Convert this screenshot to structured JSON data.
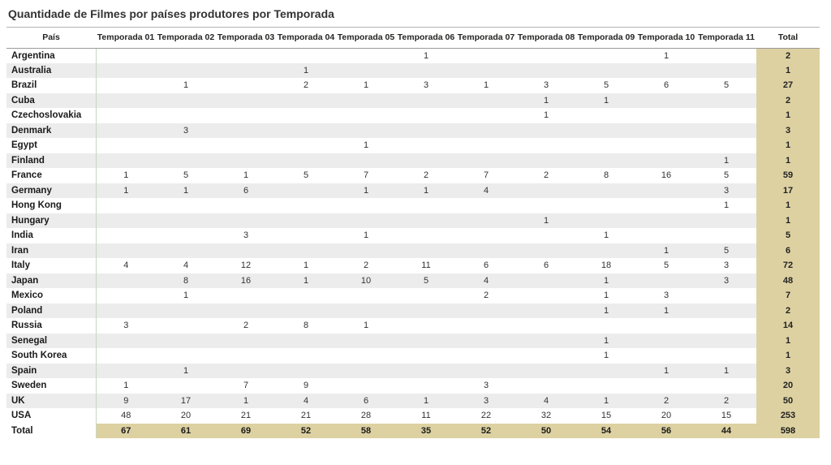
{
  "chart_data": {
    "type": "table",
    "title": "Quantidade de Filmes por países produtores por Temporada",
    "row_header_label": "País",
    "season_columns": [
      "Temporada 01",
      "Temporada 02",
      "Temporada 03",
      "Temporada 04",
      "Temporada 05",
      "Temporada 06",
      "Temporada 07",
      "Temporada 08",
      "Temporada 09",
      "Temporada 10",
      "Temporada 11"
    ],
    "total_column_label": "Total",
    "rows": [
      {
        "country": "Argentina",
        "values": [
          "",
          "",
          "",
          "",
          "",
          "1",
          "",
          "",
          "",
          "1",
          ""
        ],
        "total": "2"
      },
      {
        "country": "Australia",
        "values": [
          "",
          "",
          "",
          "1",
          "",
          "",
          "",
          "",
          "",
          "",
          ""
        ],
        "total": "1"
      },
      {
        "country": "Brazil",
        "values": [
          "",
          "1",
          "",
          "2",
          "1",
          "3",
          "1",
          "3",
          "5",
          "6",
          "5"
        ],
        "total": "27"
      },
      {
        "country": "Cuba",
        "values": [
          "",
          "",
          "",
          "",
          "",
          "",
          "",
          "1",
          "1",
          "",
          ""
        ],
        "total": "2"
      },
      {
        "country": "Czechoslovakia",
        "values": [
          "",
          "",
          "",
          "",
          "",
          "",
          "",
          "1",
          "",
          "",
          ""
        ],
        "total": "1"
      },
      {
        "country": "Denmark",
        "values": [
          "",
          "3",
          "",
          "",
          "",
          "",
          "",
          "",
          "",
          "",
          ""
        ],
        "total": "3"
      },
      {
        "country": "Egypt",
        "values": [
          "",
          "",
          "",
          "",
          "1",
          "",
          "",
          "",
          "",
          "",
          ""
        ],
        "total": "1"
      },
      {
        "country": "Finland",
        "values": [
          "",
          "",
          "",
          "",
          "",
          "",
          "",
          "",
          "",
          "",
          "1"
        ],
        "total": "1"
      },
      {
        "country": "France",
        "values": [
          "1",
          "5",
          "1",
          "5",
          "7",
          "2",
          "7",
          "2",
          "8",
          "16",
          "5"
        ],
        "total": "59"
      },
      {
        "country": "Germany",
        "values": [
          "1",
          "1",
          "6",
          "",
          "1",
          "1",
          "4",
          "",
          "",
          "",
          "3"
        ],
        "total": "17"
      },
      {
        "country": "Hong Kong",
        "values": [
          "",
          "",
          "",
          "",
          "",
          "",
          "",
          "",
          "",
          "",
          "1"
        ],
        "total": "1"
      },
      {
        "country": "Hungary",
        "values": [
          "",
          "",
          "",
          "",
          "",
          "",
          "",
          "1",
          "",
          "",
          ""
        ],
        "total": "1"
      },
      {
        "country": "India",
        "values": [
          "",
          "",
          "3",
          "",
          "1",
          "",
          "",
          "",
          "1",
          "",
          ""
        ],
        "total": "5"
      },
      {
        "country": "Iran",
        "values": [
          "",
          "",
          "",
          "",
          "",
          "",
          "",
          "",
          "",
          "1",
          "5"
        ],
        "total": "6"
      },
      {
        "country": "Italy",
        "values": [
          "4",
          "4",
          "12",
          "1",
          "2",
          "11",
          "6",
          "6",
          "18",
          "5",
          "3"
        ],
        "total": "72"
      },
      {
        "country": "Japan",
        "values": [
          "",
          "8",
          "16",
          "1",
          "10",
          "5",
          "4",
          "",
          "1",
          "",
          "3"
        ],
        "total": "48"
      },
      {
        "country": "Mexico",
        "values": [
          "",
          "1",
          "",
          "",
          "",
          "",
          "2",
          "",
          "1",
          "3",
          ""
        ],
        "total": "7"
      },
      {
        "country": "Poland",
        "values": [
          "",
          "",
          "",
          "",
          "",
          "",
          "",
          "",
          "1",
          "1",
          ""
        ],
        "total": "2"
      },
      {
        "country": "Russia",
        "values": [
          "3",
          "",
          "2",
          "8",
          "1",
          "",
          "",
          "",
          "",
          "",
          ""
        ],
        "total": "14"
      },
      {
        "country": "Senegal",
        "values": [
          "",
          "",
          "",
          "",
          "",
          "",
          "",
          "",
          "1",
          "",
          ""
        ],
        "total": "1"
      },
      {
        "country": "South Korea",
        "values": [
          "",
          "",
          "",
          "",
          "",
          "",
          "",
          "",
          "1",
          "",
          ""
        ],
        "total": "1"
      },
      {
        "country": "Spain",
        "values": [
          "",
          "1",
          "",
          "",
          "",
          "",
          "",
          "",
          "",
          "1",
          "1"
        ],
        "total": "3"
      },
      {
        "country": "Sweden",
        "values": [
          "1",
          "",
          "7",
          "9",
          "",
          "",
          "3",
          "",
          "",
          "",
          ""
        ],
        "total": "20"
      },
      {
        "country": "UK",
        "values": [
          "9",
          "17",
          "1",
          "4",
          "6",
          "1",
          "3",
          "4",
          "1",
          "2",
          "2"
        ],
        "total": "50"
      },
      {
        "country": "USA",
        "values": [
          "48",
          "20",
          "21",
          "21",
          "28",
          "11",
          "22",
          "32",
          "15",
          "20",
          "15"
        ],
        "total": "253"
      }
    ],
    "total_row": {
      "label": "Total",
      "values": [
        "67",
        "61",
        "69",
        "52",
        "58",
        "35",
        "52",
        "50",
        "54",
        "56",
        "44"
      ],
      "total": "598"
    }
  },
  "colors": {
    "total_accent": "#ddd1a2",
    "alt_row": "#ececec",
    "divider_green": "#c9d6c4",
    "header_text": "#252423",
    "body_text": "#333333",
    "title_text": "#333333",
    "title_rule": "#b3b3b3",
    "header_rule": "#999999"
  }
}
